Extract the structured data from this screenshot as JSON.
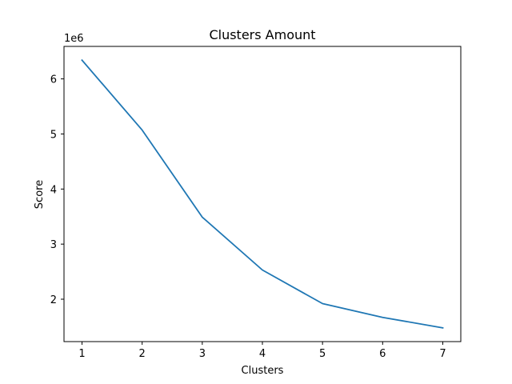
{
  "chart_data": {
    "type": "line",
    "title": "Clusters Amount",
    "xlabel": "Clusters",
    "ylabel": "Score",
    "y_offset_label": "1e6",
    "x": [
      1,
      2,
      3,
      4,
      5,
      6,
      7
    ],
    "series": [
      {
        "values": [
          6340000,
          5070000,
          3490000,
          2530000,
          1920000,
          1670000,
          1480000
        ],
        "color": "#1f77b4"
      }
    ],
    "xlim": [
      0.7,
      7.3
    ],
    "ylim": [
      1230000,
      6590000
    ],
    "x_ticks": [
      1,
      2,
      3,
      4,
      5,
      6,
      7
    ],
    "x_tick_labels": [
      "1",
      "2",
      "3",
      "4",
      "5",
      "6",
      "7"
    ],
    "y_ticks": [
      2000000,
      3000000,
      4000000,
      5000000,
      6000000
    ],
    "y_tick_labels": [
      "2",
      "3",
      "4",
      "5",
      "6"
    ],
    "grid": false,
    "legend": "none"
  }
}
